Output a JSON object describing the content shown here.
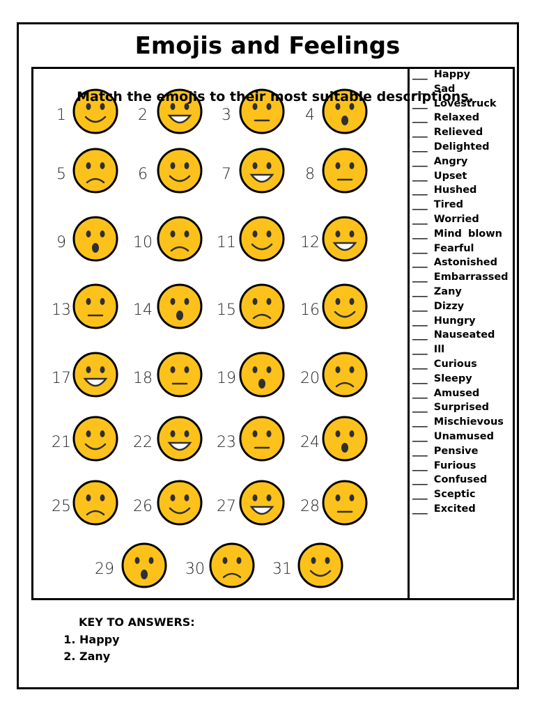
{
  "title": "Emojis and Feelings",
  "instruction": "Match the emojis to their most suitable descriptions.",
  "emoji_numbers": [
    1,
    2,
    3,
    4,
    5,
    6,
    7,
    8,
    9,
    10,
    11,
    12,
    13,
    14,
    15,
    16,
    17,
    18,
    19,
    20,
    21,
    22,
    23,
    24,
    25,
    26,
    27,
    28,
    29,
    30,
    31
  ],
  "descriptions": [
    "___ Happy",
    "___ Sad",
    "___ Lovestruck",
    "___ Relaxed",
    "___ Relieved",
    "___ Delighted",
    "___ Angry",
    "___ Upset",
    "___ Hushed",
    "___ Tired",
    "___ Worried",
    "___ Mind blown",
    "___ Fearful",
    "___ Astonished",
    "___ Embarrassed",
    "___ Zany",
    "___ Dizzy",
    "___ Hungry",
    "___ Nauseated",
    "___ Ill",
    "___ Curious",
    "___ Sleepy",
    "___ Amused",
    "___ Surprised",
    "___ Mischievous",
    "___ Unamused",
    "___ Pensive",
    "___ Furious",
    "___ Confused",
    "___ Sceptic",
    "___ Excited"
  ],
  "key": {
    "heading": "KEY TO ANSWERS:",
    "answers": [
      "Happy",
      "Zany"
    ]
  }
}
